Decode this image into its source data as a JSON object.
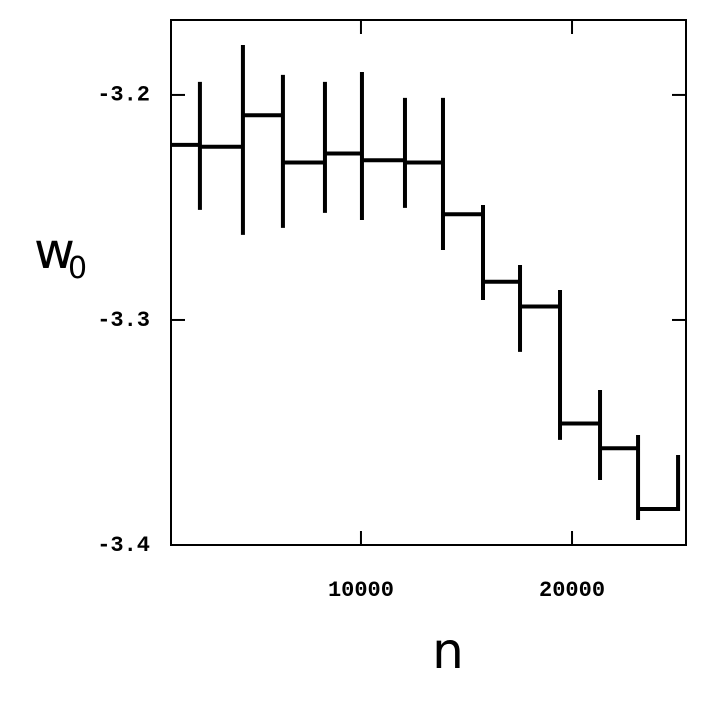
{
  "chart_data": {
    "type": "line",
    "x_label": "n",
    "y_label": "w",
    "y_label_subscript": "0",
    "color": "#000000",
    "x": [
      1000,
      2370,
      2370,
      2370,
      2370,
      4408,
      4408,
      4408,
      4408,
      6303,
      6303,
      6303,
      6303,
      8294,
      8294,
      8294,
      8294,
      10047,
      10047,
      10047,
      10047,
      12085,
      12085,
      12085,
      12085,
      13886,
      13886,
      13886,
      13886,
      15782,
      15782,
      15782,
      15782,
      17536,
      17536,
      17536,
      17536,
      19431,
      19431,
      19431,
      19431,
      21327,
      21327,
      21327,
      21327,
      23128,
      23128,
      23128,
      23128,
      25024,
      25024
    ],
    "values": [
      -3.2222,
      -3.2222,
      -3.1942,
      -3.2511,
      -3.223,
      -3.223,
      -3.1778,
      -3.2622,
      -3.209,
      -3.209,
      -3.1911,
      -3.2591,
      -3.23,
      -3.23,
      -3.1942,
      -3.2524,
      -3.226,
      -3.226,
      -3.1898,
      -3.2556,
      -3.229,
      -3.229,
      -3.2013,
      -3.2502,
      -3.23,
      -3.23,
      -3.2013,
      -3.2689,
      -3.253,
      -3.253,
      -3.2489,
      -3.2911,
      -3.283,
      -3.283,
      -3.2756,
      -3.3142,
      -3.294,
      -3.294,
      -3.2867,
      -3.3533,
      -3.346,
      -3.346,
      -3.3311,
      -3.3711,
      -3.357,
      -3.357,
      -3.3511,
      -3.3889,
      -3.384,
      -3.384,
      -3.36
    ],
    "xlim": [
      1000,
      25400
    ],
    "ylim": [
      -3.4,
      -3.1667
    ],
    "xticks": [
      10000,
      20000
    ],
    "yticks": [
      -3.2,
      -3.3,
      -3.4
    ]
  }
}
